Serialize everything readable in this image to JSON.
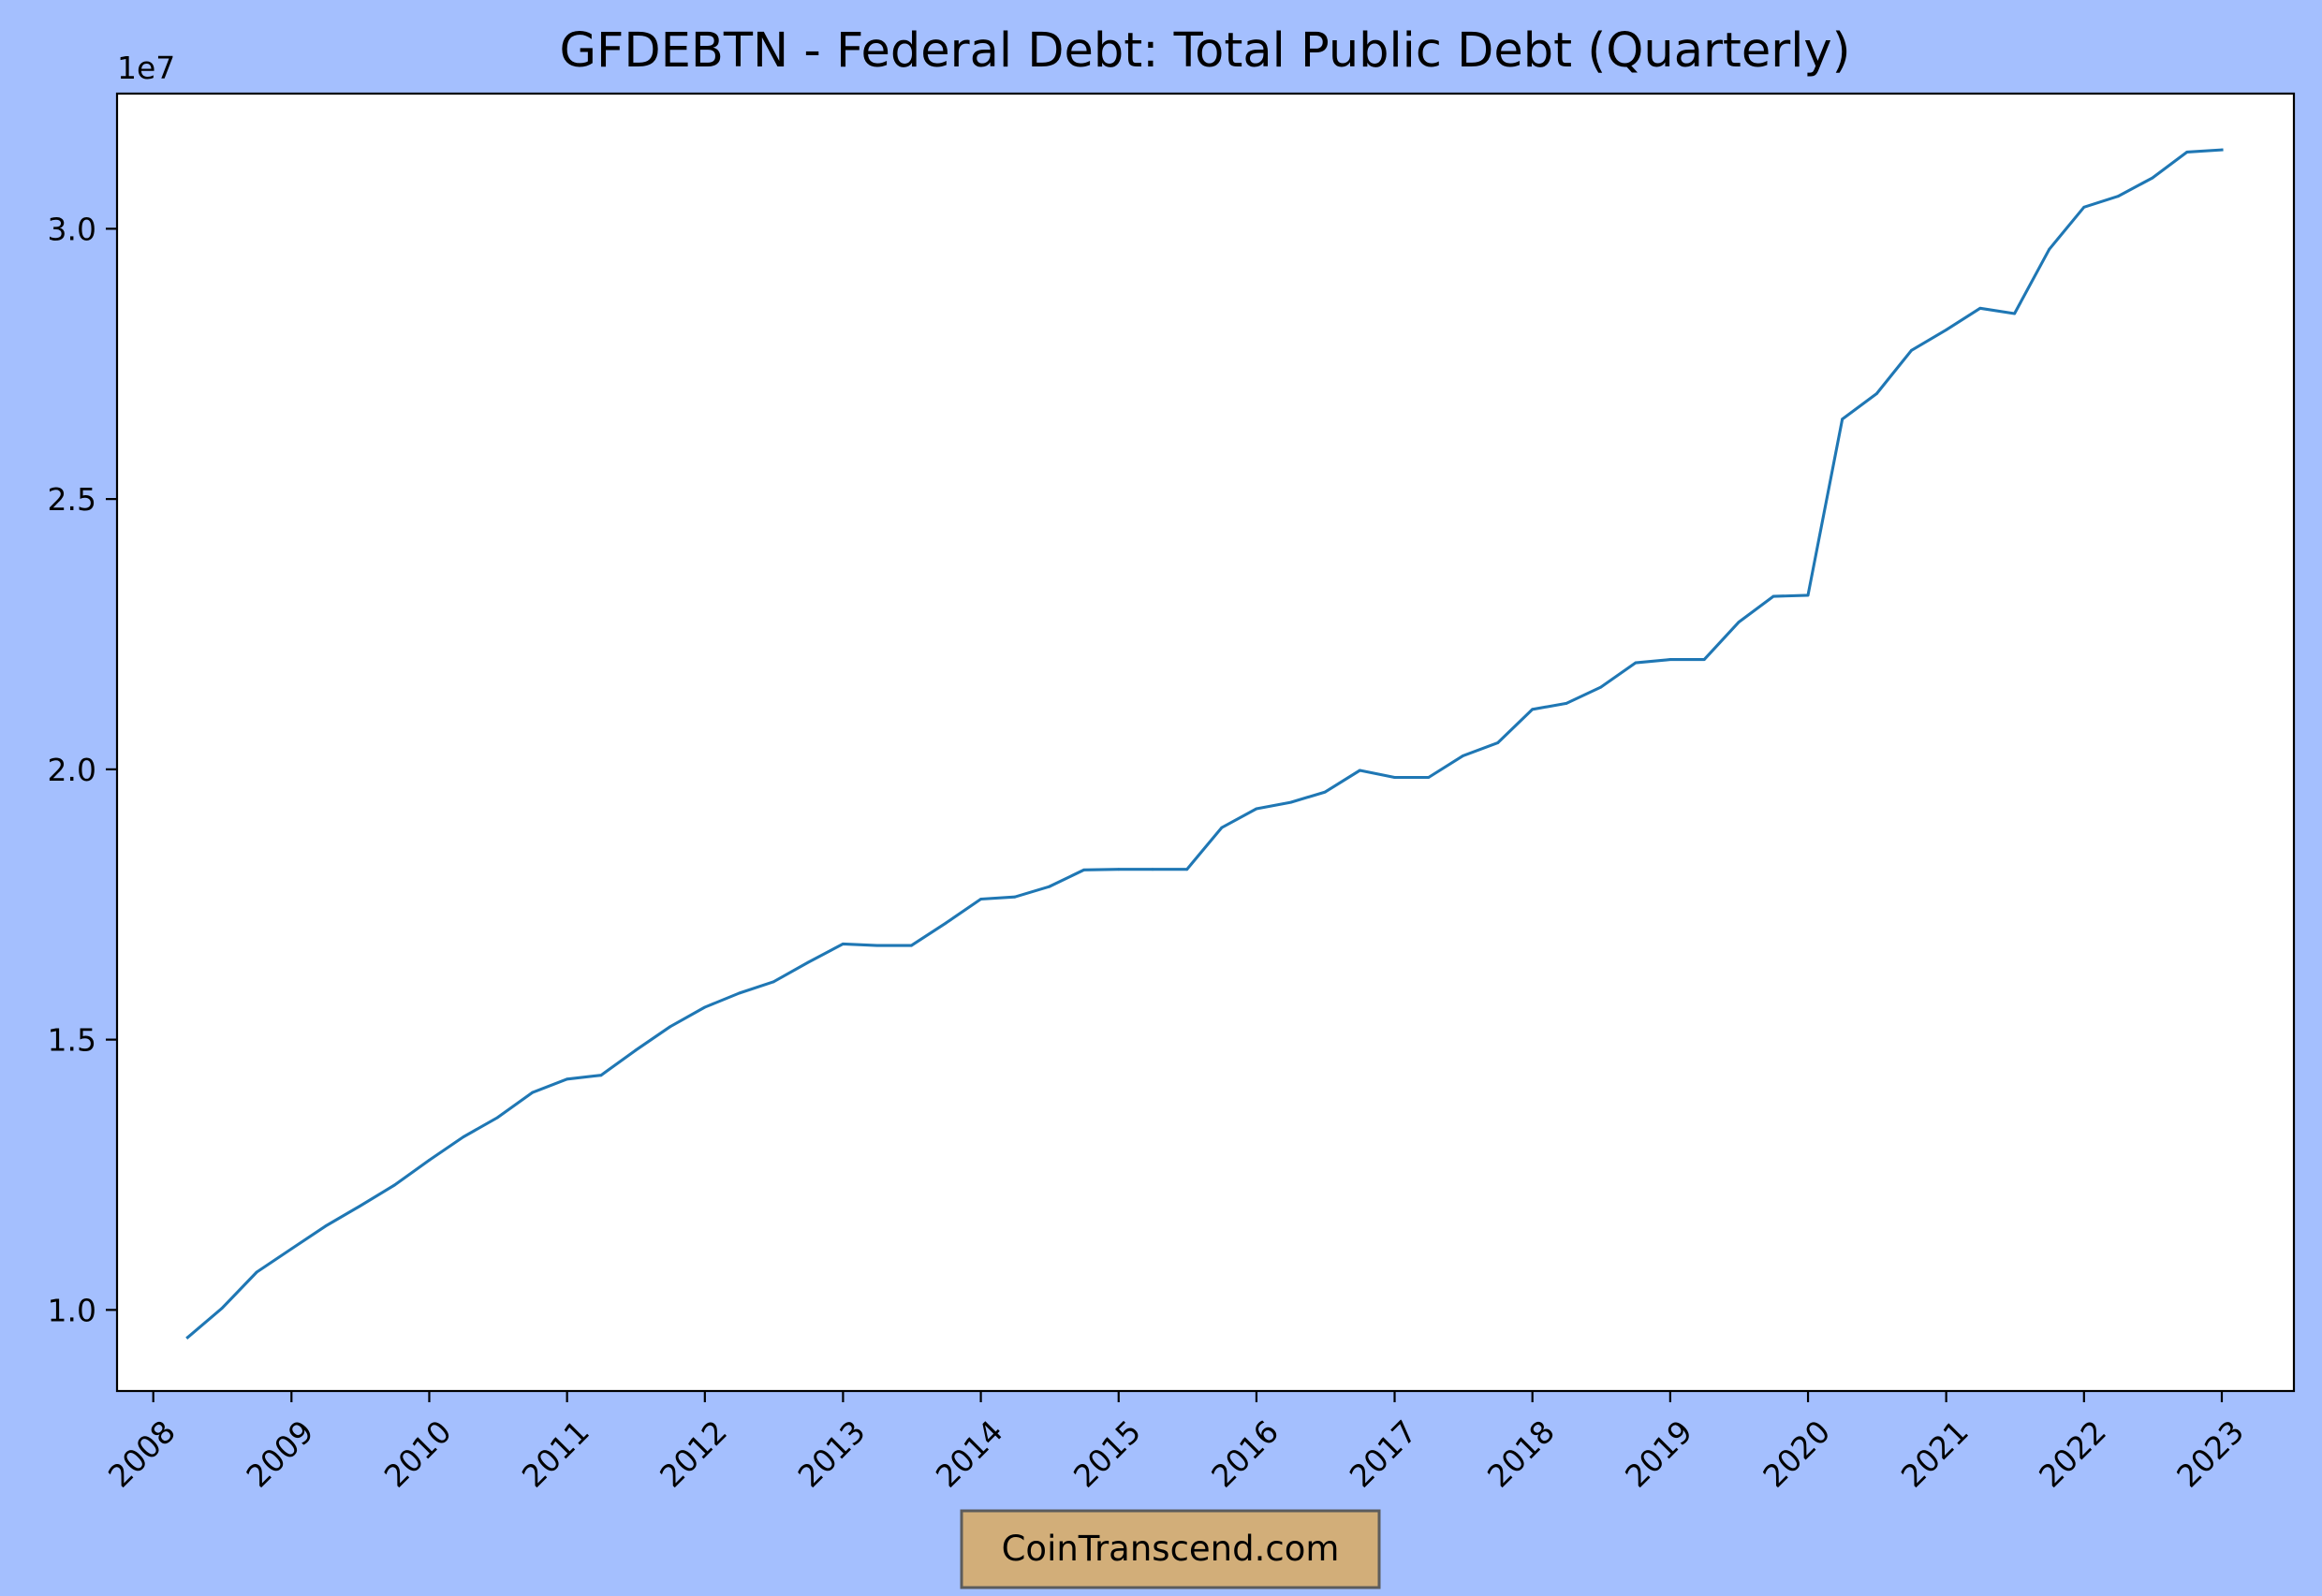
{
  "chart_data": {
    "type": "line",
    "title": "GFDEBTN - Federal Debt: Total Public Debt (Quarterly)",
    "xlabel": "",
    "ylabel": "",
    "y_offset_label": "1e7",
    "y_scale_factor": 10000000,
    "xlim": [
      "2007-09-27",
      "2023-07-11"
    ],
    "ylim": [
      8500000,
      32500000
    ],
    "grid": false,
    "legend": "none",
    "line_color": "#1f77b4",
    "x_ticks": [
      {
        "date": "2008-01-01",
        "label": "2008"
      },
      {
        "date": "2009-01-01",
        "label": "2009"
      },
      {
        "date": "2010-01-01",
        "label": "2010"
      },
      {
        "date": "2011-01-01",
        "label": "2011"
      },
      {
        "date": "2012-01-01",
        "label": "2012"
      },
      {
        "date": "2013-01-01",
        "label": "2013"
      },
      {
        "date": "2014-01-01",
        "label": "2014"
      },
      {
        "date": "2015-01-01",
        "label": "2015"
      },
      {
        "date": "2016-01-01",
        "label": "2016"
      },
      {
        "date": "2017-01-01",
        "label": "2017"
      },
      {
        "date": "2018-01-01",
        "label": "2018"
      },
      {
        "date": "2019-01-01",
        "label": "2019"
      },
      {
        "date": "2020-01-01",
        "label": "2020"
      },
      {
        "date": "2021-01-01",
        "label": "2021"
      },
      {
        "date": "2022-01-01",
        "label": "2022"
      },
      {
        "date": "2023-01-01",
        "label": "2023"
      }
    ],
    "y_ticks": [
      {
        "value": 10000000,
        "label": "1.0"
      },
      {
        "value": 15000000,
        "label": "1.5"
      },
      {
        "value": 20000000,
        "label": "2.0"
      },
      {
        "value": 25000000,
        "label": "2.5"
      },
      {
        "value": 30000000,
        "label": "3.0"
      }
    ],
    "series": [
      {
        "x": [
          "2008-04-01",
          "2008-07-01",
          "2008-10-01",
          "2009-01-01",
          "2009-04-01",
          "2009-07-01",
          "2009-10-01",
          "2010-01-01",
          "2010-04-01",
          "2010-07-01",
          "2010-10-01",
          "2011-01-01",
          "2011-04-01",
          "2011-07-01",
          "2011-10-01",
          "2012-01-01",
          "2012-04-01",
          "2012-07-01",
          "2012-10-01",
          "2013-01-01",
          "2013-04-01",
          "2013-07-01",
          "2013-10-01",
          "2014-01-01",
          "2014-04-01",
          "2014-07-01",
          "2014-10-01",
          "2015-01-01",
          "2015-04-01",
          "2015-07-01",
          "2015-10-01",
          "2016-01-01",
          "2016-04-01",
          "2016-07-01",
          "2016-10-01",
          "2017-01-01",
          "2017-04-01",
          "2017-07-01",
          "2017-10-01",
          "2018-01-01",
          "2018-04-01",
          "2018-07-01",
          "2018-10-01",
          "2019-01-01",
          "2019-04-01",
          "2019-07-01",
          "2019-10-01",
          "2020-01-01",
          "2020-04-01",
          "2020-07-01",
          "2020-10-01",
          "2021-01-01",
          "2021-04-01",
          "2021-07-01",
          "2021-10-01",
          "2022-01-01",
          "2022-04-01",
          "2022-07-01",
          "2022-10-01",
          "2023-01-01"
        ],
        "y": [
          9490000,
          10030000,
          10700000,
          11130000,
          11550000,
          11920000,
          12310000,
          12770000,
          13200000,
          13560000,
          14020000,
          14270000,
          14340000,
          14800000,
          15240000,
          15600000,
          15860000,
          16070000,
          16430000,
          16770000,
          16740000,
          16740000,
          17160000,
          17600000,
          17640000,
          17830000,
          18140000,
          18150000,
          18150000,
          18150000,
          18920000,
          19270000,
          19390000,
          19580000,
          19980000,
          19850000,
          19850000,
          20250000,
          20490000,
          21110000,
          21220000,
          21520000,
          21970000,
          22030000,
          22030000,
          22720000,
          23200000,
          23220000,
          26480000,
          26950000,
          27750000,
          28130000,
          28530000,
          28430000,
          29620000,
          30400000,
          30600000,
          30940000,
          31420000,
          31460000
        ]
      }
    ]
  },
  "watermark": {
    "text": "CoinTranscend.com",
    "background": "#d2ae79",
    "border": "#5c5c5c"
  }
}
